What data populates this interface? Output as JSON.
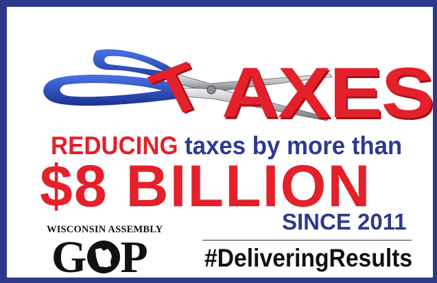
{
  "headline": {
    "word_letters": [
      "T",
      "A",
      "X",
      "E",
      "S"
    ],
    "reducing": "REDUCING",
    "taxes_by": "taxes by more than",
    "amount": "$8 BILLION",
    "since": "SINCE 2011"
  },
  "organization": {
    "name": "WISCONSIN ASSEMBLY",
    "logo_left": "G",
    "logo_right": "P"
  },
  "hashtag": "#DeliveringResults",
  "icons": [
    "scissors-icon",
    "wisconsin-state-icon"
  ],
  "colors": {
    "red": "#e4202a",
    "navy": "#2d3a8c",
    "scissor_blue": "#2a4fc0",
    "black": "#111111"
  }
}
